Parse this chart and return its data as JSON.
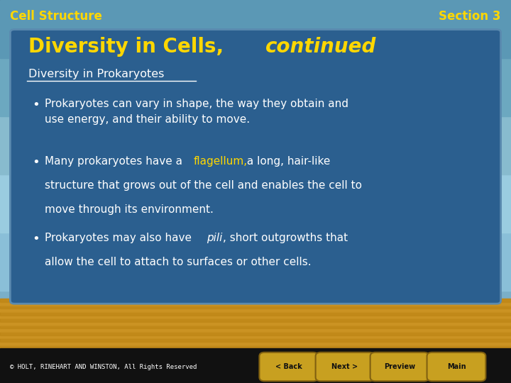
{
  "header_left": "Cell Structure",
  "header_right": "Section 3",
  "header_text_color": "#FFD700",
  "title_normal": "Diversity in Cells, ",
  "title_italic": "continued",
  "title_color": "#FFD700",
  "subtitle": "Diversity in Prokaryotes",
  "subtitle_color": "#FFFFFF",
  "main_bg_color": "#2B5F8F",
  "slide_border_color": "#5A8AAF",
  "footer_text": "© HOLT, RINEHART AND WINSTON, All Rights Reserved",
  "footer_bg": "#111111",
  "footer_text_color": "#FFFFFF",
  "bottom_bar_color": "#C8A020",
  "nav_buttons": [
    "< Back",
    "Next >",
    "Preview",
    "Main"
  ],
  "nav_btn_color": "#C8A020",
  "nav_btn_text_color": "#111111",
  "bullet_color": "#FFFFFF",
  "highlight_color": "#FFD700",
  "sky_colors": [
    "#7AAFC8",
    "#8ABFD8",
    "#9ACCE0",
    "#88BBCE",
    "#6CA8C0",
    "#5B98B5"
  ],
  "gold_color": "#C89020"
}
